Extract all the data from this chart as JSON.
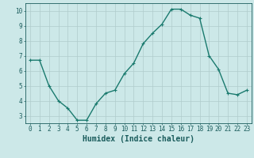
{
  "x": [
    0,
    1,
    2,
    3,
    4,
    5,
    6,
    7,
    8,
    9,
    10,
    11,
    12,
    13,
    14,
    15,
    16,
    17,
    18,
    19,
    20,
    21,
    22,
    23
  ],
  "y": [
    6.7,
    6.7,
    5.0,
    4.0,
    3.5,
    2.7,
    2.7,
    3.8,
    4.5,
    4.7,
    5.8,
    6.5,
    7.8,
    8.5,
    9.1,
    10.1,
    10.1,
    9.7,
    9.5,
    7.0,
    6.1,
    4.5,
    4.4,
    4.7
  ],
  "line_color": "#1a7a6e",
  "bg_color": "#cce8e8",
  "grid_color": "#b0cccc",
  "tick_color": "#1a5c5c",
  "xlabel": "Humidex (Indice chaleur)",
  "xlim": [
    -0.5,
    23.5
  ],
  "ylim": [
    2.5,
    10.5
  ],
  "yticks": [
    3,
    4,
    5,
    6,
    7,
    8,
    9,
    10
  ],
  "xticks": [
    0,
    1,
    2,
    3,
    4,
    5,
    6,
    7,
    8,
    9,
    10,
    11,
    12,
    13,
    14,
    15,
    16,
    17,
    18,
    19,
    20,
    21,
    22,
    23
  ],
  "marker": "+",
  "markersize": 3,
  "linewidth": 1.0,
  "xlabel_fontsize": 7,
  "tick_fontsize": 5.5
}
